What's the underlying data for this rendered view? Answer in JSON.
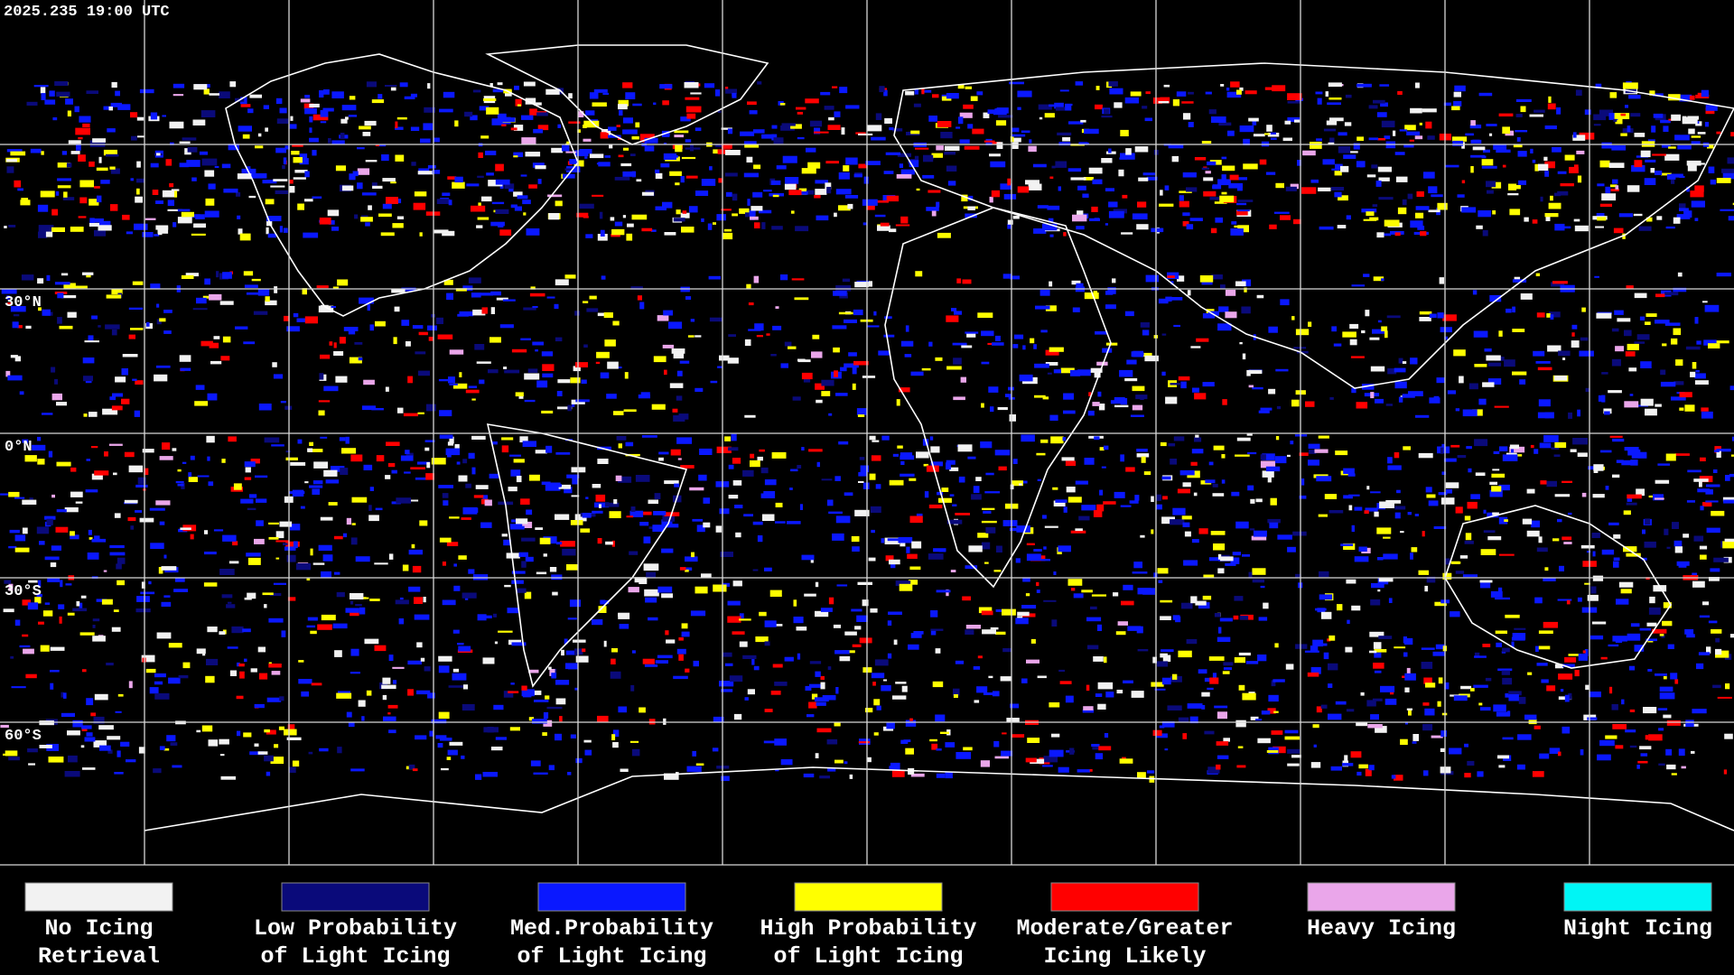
{
  "timestamp": "2025.235 19:00 UTC",
  "latitude_labels": [
    "30°N",
    "0°N",
    "30°S",
    "60°S"
  ],
  "legend": [
    {
      "lines": [
        "No Icing",
        "Retrieval"
      ],
      "color": "#f2f2f2"
    },
    {
      "lines": [
        "Low Probability",
        "of Light Icing"
      ],
      "color": "#0a0a7a"
    },
    {
      "lines": [
        "Med.Probability",
        "of Light Icing"
      ],
      "color": "#0a18ff"
    },
    {
      "lines": [
        "High Probability",
        "of Light Icing"
      ],
      "color": "#ffff00"
    },
    {
      "lines": [
        "Moderate/Greater",
        "Icing Likely"
      ],
      "color": "#ff0000"
    },
    {
      "lines": [
        "Heavy Icing"
      ],
      "color": "#eaa6ea"
    },
    {
      "lines": [
        "Night Icing"
      ],
      "color": "#00f5f5"
    }
  ]
}
